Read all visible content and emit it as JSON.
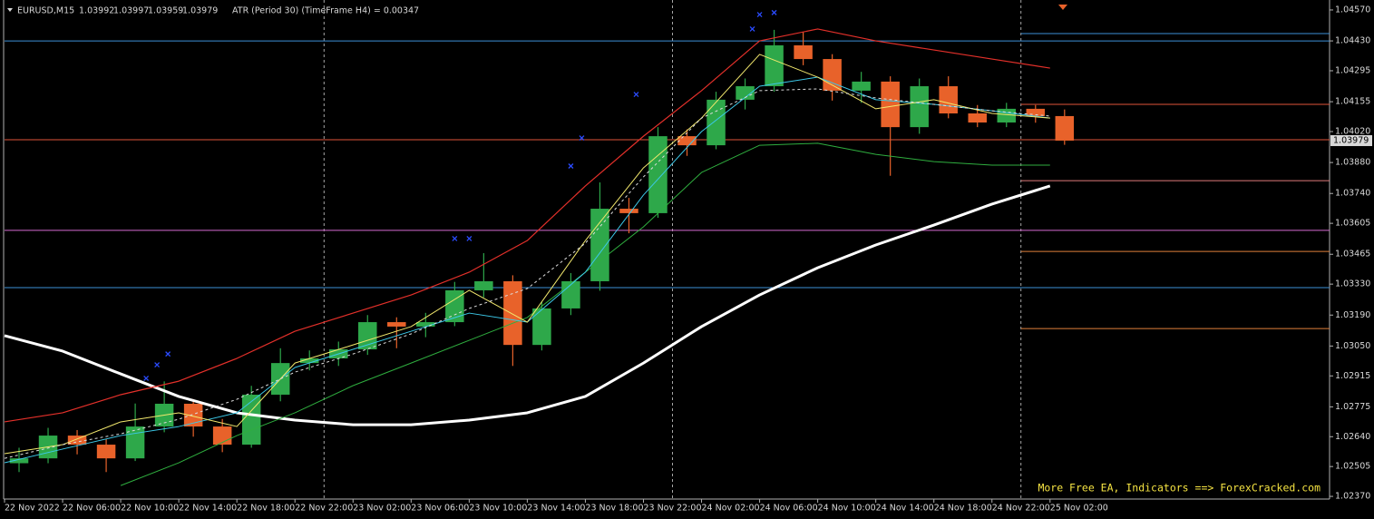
{
  "chart_data": {
    "type": "candlestick",
    "header": {
      "symbol": "EURUSD,M15",
      "open": 1.03992,
      "high": 1.03997,
      "low": 1.03959,
      "close": 1.03979
    },
    "indicator_text": "ATR (Period 30) (TimeFrame H4) = 0.00347",
    "watermark": "More Free EA, Indicators ==> ForexCracked.com",
    "xlim": [
      "2022-11-22 02:00",
      "2022-11-25 21:15"
    ],
    "ylim": [
      1.02358,
      1.04615
    ],
    "yticks": [
      {
        "value": 1.0457,
        "label": "1.04570"
      },
      {
        "value": 1.0443,
        "label": "1.04430"
      },
      {
        "value": 1.04295,
        "label": "1.04295"
      },
      {
        "value": 1.04155,
        "label": "1.04155"
      },
      {
        "value": 1.0402,
        "label": "1.04020"
      },
      {
        "value": 1.0388,
        "label": "1.03880"
      },
      {
        "value": 1.0374,
        "label": "1.03740"
      },
      {
        "value": 1.03605,
        "label": "1.03605"
      },
      {
        "value": 1.03465,
        "label": "1.03465"
      },
      {
        "value": 1.0333,
        "label": "1.03330"
      },
      {
        "value": 1.0319,
        "label": "1.03190"
      },
      {
        "value": 1.0305,
        "label": "1.03050"
      },
      {
        "value": 1.02915,
        "label": "1.02915"
      },
      {
        "value": 1.02775,
        "label": "1.02775"
      },
      {
        "value": 1.0264,
        "label": "1.02640"
      },
      {
        "value": 1.02505,
        "label": "1.02505"
      },
      {
        "value": 1.0237,
        "label": "1.02370"
      }
    ],
    "xticks": [
      {
        "value": "2022-11-22 02:00",
        "label": "22 Nov 2022"
      },
      {
        "value": "2022-11-22 06:00",
        "label": "22 Nov 06:00"
      },
      {
        "value": "2022-11-22 10:00",
        "label": "22 Nov 10:00"
      },
      {
        "value": "2022-11-22 14:00",
        "label": "22 Nov 14:00"
      },
      {
        "value": "2022-11-22 18:00",
        "label": "22 Nov 18:00"
      },
      {
        "value": "2022-11-22 22:00",
        "label": "22 Nov 22:00"
      },
      {
        "value": "2022-11-23 02:00",
        "label": "23 Nov 02:00"
      },
      {
        "value": "2022-11-23 06:00",
        "label": "23 Nov 06:00"
      },
      {
        "value": "2022-11-23 10:00",
        "label": "23 Nov 10:00"
      },
      {
        "value": "2022-11-23 14:00",
        "label": "23 Nov 14:00"
      },
      {
        "value": "2022-11-23 18:00",
        "label": "23 Nov 18:00"
      },
      {
        "value": "2022-11-23 22:00",
        "label": "23 Nov 22:00"
      },
      {
        "value": "2022-11-24 02:00",
        "label": "24 Nov 02:00"
      },
      {
        "value": "2022-11-24 06:00",
        "label": "24 Nov 06:00"
      },
      {
        "value": "2022-11-24 10:00",
        "label": "24 Nov 10:00"
      },
      {
        "value": "2022-11-24 14:00",
        "label": "24 Nov 14:00"
      },
      {
        "value": "2022-11-24 18:00",
        "label": "24 Nov 18:00"
      },
      {
        "value": "2022-11-24 22:00",
        "label": "24 Nov 22:00"
      },
      {
        "value": "2022-11-25 02:00",
        "label": "25 Nov 02:00"
      }
    ],
    "period_separators": [
      "2022-11-23 00:00",
      "2022-11-24 00:00",
      "2022-11-25 00:00"
    ],
    "candle_hours": 2,
    "up_color": "#2ea84a",
    "down_color": "#e8622a",
    "x": [
      "2022-11-22 02:00",
      "2022-11-22 04:00",
      "2022-11-22 06:00",
      "2022-11-22 08:00",
      "2022-11-22 10:00",
      "2022-11-22 12:00",
      "2022-11-22 14:00",
      "2022-11-22 16:00",
      "2022-11-22 18:00",
      "2022-11-22 20:00",
      "2022-11-22 22:00",
      "2022-11-23 00:00",
      "2022-11-23 02:00",
      "2022-11-23 04:00",
      "2022-11-23 06:00",
      "2022-11-23 08:00",
      "2022-11-23 10:00",
      "2022-11-23 12:00",
      "2022-11-23 14:00",
      "2022-11-23 16:00",
      "2022-11-23 18:00",
      "2022-11-23 20:00",
      "2022-11-23 22:00",
      "2022-11-24 00:00",
      "2022-11-24 02:00",
      "2022-11-24 04:00",
      "2022-11-24 06:00",
      "2022-11-24 08:00",
      "2022-11-24 10:00",
      "2022-11-24 12:00",
      "2022-11-24 14:00",
      "2022-11-24 16:00",
      "2022-11-24 18:00",
      "2022-11-24 20:00",
      "2022-11-24 22:00",
      "2022-11-25 00:00",
      "2022-11-25 02:00"
    ],
    "open": [
      1.0252,
      1.02542,
      1.02645,
      1.02604,
      1.02542,
      1.02686,
      1.02789,
      1.02686,
      1.02604,
      1.0283,
      1.02973,
      1.02994,
      1.03035,
      1.03158,
      1.03138,
      1.03158,
      1.03302,
      1.03343,
      1.03055,
      1.0322,
      1.03343,
      1.03671,
      1.03651,
      1.03999,
      1.03958,
      1.04164,
      1.04225,
      1.0441,
      1.04348,
      1.04205,
      1.04246,
      1.0404,
      1.04225,
      1.04102,
      1.04061,
      1.04123,
      1.0409
    ],
    "high": [
      1.0259,
      1.0268,
      1.0267,
      1.0263,
      1.0279,
      1.0289,
      1.0281,
      1.0272,
      1.0287,
      1.0304,
      1.0303,
      1.0307,
      1.0319,
      1.0318,
      1.032,
      1.0334,
      1.0347,
      1.0337,
      1.0325,
      1.0338,
      1.0379,
      1.0372,
      1.0404,
      1.0403,
      1.042,
      1.0426,
      1.0448,
      1.0447,
      1.0437,
      1.0429,
      1.0427,
      1.0426,
      1.0427,
      1.0414,
      1.0415,
      1.0414,
      1.0412
    ],
    "low": [
      1.0248,
      1.0252,
      1.0256,
      1.0248,
      1.0253,
      1.0266,
      1.0264,
      1.0257,
      1.0259,
      1.028,
      1.0294,
      1.0296,
      1.0301,
      1.0304,
      1.0309,
      1.0314,
      1.0327,
      1.0296,
      1.0303,
      1.0319,
      1.033,
      1.0356,
      1.0363,
      1.0391,
      1.0394,
      1.0412,
      1.042,
      1.0432,
      1.0416,
      1.0415,
      1.0382,
      1.0401,
      1.0408,
      1.0404,
      1.0404,
      1.0406,
      1.0396
    ],
    "close": [
      1.02542,
      1.02645,
      1.02604,
      1.02542,
      1.02686,
      1.02789,
      1.02686,
      1.02604,
      1.0283,
      1.02973,
      1.02994,
      1.03035,
      1.03158,
      1.03138,
      1.03158,
      1.03302,
      1.03343,
      1.03055,
      1.0322,
      1.03343,
      1.03671,
      1.03651,
      1.03999,
      1.03958,
      1.04164,
      1.04225,
      1.0441,
      1.04348,
      1.04205,
      1.04246,
      1.0404,
      1.04225,
      1.04102,
      1.04061,
      1.04123,
      1.0409,
      1.03979
    ],
    "line_x": [
      "2022-11-22 02:00",
      "2022-11-22 06:00",
      "2022-11-22 10:00",
      "2022-11-22 14:00",
      "2022-11-22 18:00",
      "2022-11-22 22:00",
      "2022-11-23 02:00",
      "2022-11-23 06:00",
      "2022-11-23 10:00",
      "2022-11-23 14:00",
      "2022-11-23 18:00",
      "2022-11-23 22:00",
      "2022-11-24 02:00",
      "2022-11-24 06:00",
      "2022-11-24 10:00",
      "2022-11-24 14:00",
      "2022-11-24 18:00",
      "2022-11-24 22:00",
      "2022-11-25 02:00"
    ],
    "lines": [
      {
        "color": "#ffffff",
        "width": 3,
        "dashed": false,
        "values": [
          1.03097,
          1.03027,
          1.02924,
          1.02822,
          1.02748,
          1.02715,
          1.02694,
          1.02694,
          1.02715,
          1.02748,
          1.02822,
          1.02973,
          1.03138,
          1.03281,
          1.03404,
          1.03507,
          1.03597,
          1.03692,
          1.03774
        ]
      },
      {
        "color": "#e3302a",
        "width": 1.2,
        "dashed": false,
        "values": [
          1.02707,
          1.02748,
          1.0283,
          1.02891,
          1.02994,
          1.03117,
          1.03199,
          1.03281,
          1.03384,
          1.03527,
          1.03774,
          1.03999,
          1.04205,
          1.0443,
          1.04484,
          1.0443,
          1.04389,
          1.04348,
          1.04307
        ]
      },
      {
        "color": "#2fae3f",
        "width": 1,
        "dashed": false,
        "values": [
          null,
          null,
          1.02419,
          1.02522,
          1.02645,
          1.02748,
          1.02871,
          1.02973,
          1.03076,
          1.03179,
          1.03384,
          1.03589,
          1.03835,
          1.03958,
          1.03967,
          1.03917,
          1.03884,
          1.03868,
          1.03868
        ]
      },
      {
        "color": "#3cc8e8",
        "width": 1,
        "dashed": false,
        "values": [
          1.02522,
          1.02584,
          1.02645,
          1.02686,
          1.02748,
          1.02953,
          1.03035,
          1.03117,
          1.03199,
          1.03158,
          1.03384,
          1.03733,
          1.0402,
          1.04225,
          1.04266,
          1.04164,
          1.04143,
          1.04114,
          1.04081
        ]
      },
      {
        "color": "#f2e86d",
        "width": 1,
        "dashed": false,
        "values": [
          1.02563,
          1.02604,
          1.02707,
          1.02748,
          1.02686,
          1.02973,
          1.03055,
          1.03138,
          1.03302,
          1.03158,
          1.03527,
          1.03856,
          1.04081,
          1.04369,
          1.04266,
          1.04123,
          1.04164,
          1.04102,
          1.04081
        ]
      },
      {
        "color": "#dddddd",
        "width": 1,
        "dashed": true,
        "values": [
          1.02542,
          1.02604,
          1.02653,
          1.02719,
          1.02809,
          1.02932,
          1.03014,
          1.03105,
          1.0322,
          1.0331,
          1.03515,
          1.03815,
          1.04081,
          1.04205,
          1.04213,
          1.04172,
          1.04143,
          1.04114,
          1.0409
        ]
      }
    ],
    "h_lines": [
      {
        "value": 1.0443,
        "color": "#3d8fd6"
      },
      {
        "value": 1.03983,
        "color": "#e0533a"
      },
      {
        "value": 1.03573,
        "color": "#d46ad0"
      },
      {
        "value": 1.03314,
        "color": "#3d8fd6"
      }
    ],
    "day_levels_from": "2022-11-25 00:00",
    "day_levels": [
      {
        "value": 1.04463,
        "color": "#3d8fd6"
      },
      {
        "value": 1.04143,
        "color": "#e0533a"
      },
      {
        "value": 1.03798,
        "color": "#e07a7a"
      },
      {
        "value": 1.03478,
        "color": "#e0803a"
      },
      {
        "value": 1.03129,
        "color": "#e0803a"
      }
    ],
    "fractal_color": "#2a4bff",
    "fractals": {
      "x": [
        "2022-11-22 11:45",
        "2022-11-22 12:30",
        "2022-11-22 13:15",
        "2022-11-23 09:00",
        "2022-11-23 10:00",
        "2022-11-23 17:00",
        "2022-11-23 17:45",
        "2022-11-23 21:30",
        "2022-11-24 05:30",
        "2022-11-24 06:00",
        "2022-11-24 07:00"
      ],
      "values": [
        1.02904,
        1.02965,
        1.03014,
        1.03536,
        1.03536,
        1.03864,
        1.03991,
        1.04188,
        1.04484,
        1.04549,
        1.04558
      ]
    }
  }
}
